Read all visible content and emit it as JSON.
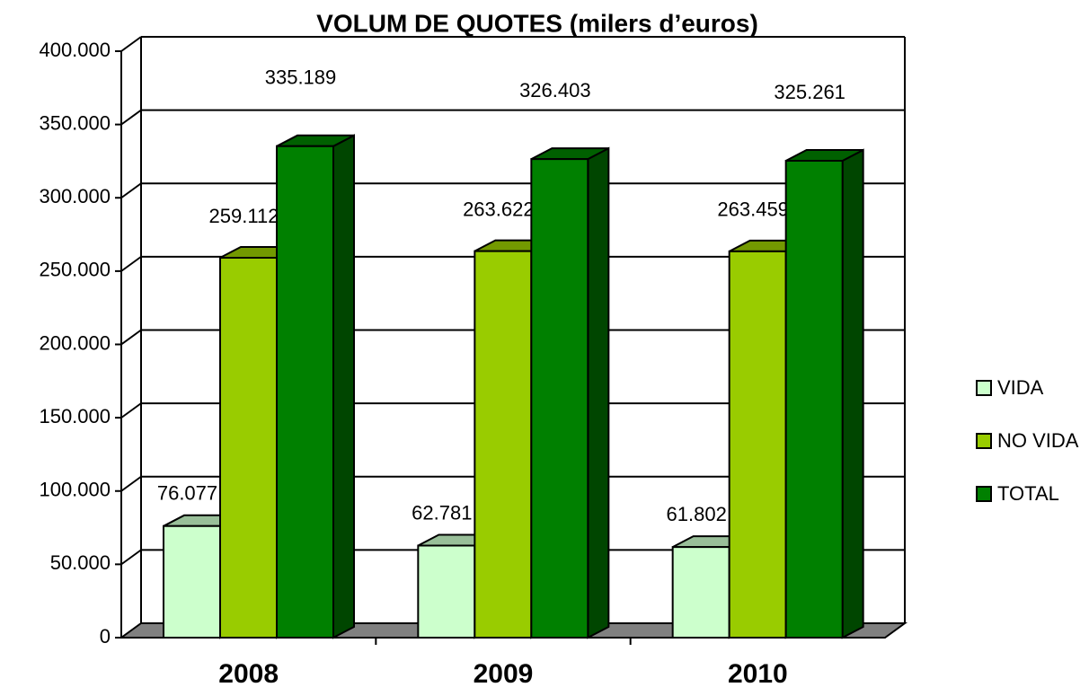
{
  "chart_data": {
    "type": "bar3d",
    "title": "VOLUM DE QUOTES (milers d’euros)",
    "categories": [
      "2008",
      "2009",
      "2010"
    ],
    "series": [
      {
        "name": "VIDA",
        "color": "#ccffcc",
        "values": [
          76077,
          62781,
          61802
        ],
        "value_labels": [
          "76.077",
          "62.781",
          "61.802"
        ]
      },
      {
        "name": "NO VIDA",
        "color": "#99cc00",
        "values": [
          259112,
          263622,
          263459
        ],
        "value_labels": [
          "259.112",
          "263.622",
          "263.459"
        ]
      },
      {
        "name": "TOTAL",
        "color": "#008000",
        "values": [
          335189,
          326403,
          325261
        ],
        "value_labels": [
          "335.189",
          "326.403",
          "325.261"
        ]
      }
    ],
    "ylim": [
      0,
      400000
    ],
    "yticks": [
      0,
      {
        "value": 50000,
        "label": "50.000"
      },
      {
        "value": 100000,
        "label": "100.000"
      },
      {
        "value": 150000,
        "label": "150.000"
      },
      {
        "value": 200000,
        "label": "200.000"
      },
      {
        "value": 250000,
        "label": "250.000"
      },
      {
        "value": 300000,
        "label": "300.000"
      },
      {
        "value": 350000,
        "label": "350.000"
      },
      {
        "value": 400000,
        "label": "400.000"
      }
    ],
    "grid": true,
    "legend": "right"
  }
}
